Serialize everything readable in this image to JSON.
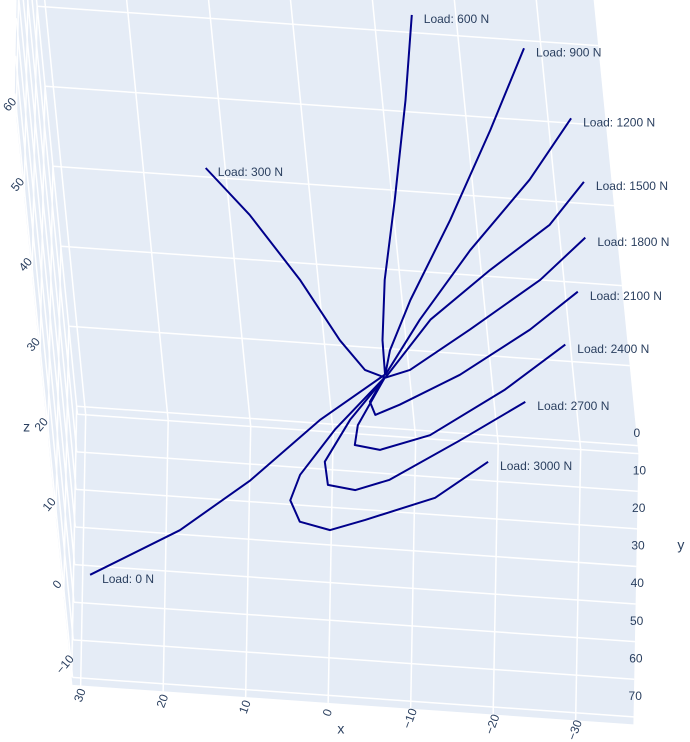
{
  "chart_data": {
    "type": "line3d",
    "x_label": "x",
    "y_label": "y",
    "z_label": "z",
    "xlim": [
      -37,
      31
    ],
    "ylim": [
      0,
      72
    ],
    "zlim": [
      -11,
      62
    ],
    "xticks": [
      30,
      20,
      10,
      0,
      {
        "value": -10,
        "label": "−10"
      },
      {
        "value": -20,
        "label": "−20"
      },
      {
        "value": -30,
        "label": "−30"
      }
    ],
    "yticks": [
      0,
      10,
      20,
      30,
      40,
      50,
      60,
      70
    ],
    "zticks": [
      {
        "value": -10,
        "label": "−10"
      },
      0,
      10,
      20,
      30,
      40,
      50,
      60
    ],
    "grid": true,
    "series": [
      {
        "name": "Load: 0 N",
        "color": "#00008b",
        "x": [
          28.7,
          17.2,
          8.0,
          -1.2,
          -9.7
        ],
        "y": [
          50,
          50,
          50,
          50,
          50
        ],
        "z": [
          -7.4,
          -1.0,
          5.9,
          14.1,
          20.4
        ]
      },
      {
        "name": "Load: 300 N",
        "color": "#00008b",
        "x": [
          11.3,
          6.5,
          1.1,
          -3.0,
          -5.7,
          -8.1
        ],
        "y": [
          20,
          20,
          20,
          20,
          20,
          20
        ],
        "z": [
          30.6,
          25.1,
          17.3,
          10.1,
          6.6,
          5.8
        ]
      },
      {
        "name": "Load: 600 N",
        "color": "#00008b",
        "x": [
          -15.7,
          -13.9,
          -11.4,
          -9.2,
          -8.2,
          -8.1
        ],
        "y": [
          20,
          20,
          20,
          20,
          20,
          20
        ],
        "z": [
          51.7,
          40.9,
          28.3,
          18.1,
          10.5,
          6.1
        ]
      },
      {
        "name": "Load: 900 N",
        "color": "#00008b",
        "x": [
          -29.0,
          -23.9,
          -17.9,
          -12.1,
          -9.0,
          -8.1
        ],
        "y": [
          20,
          20,
          20,
          20,
          20,
          20
        ],
        "z": [
          48.5,
          37.9,
          26.2,
          15.8,
          9.3,
          6.1
        ]
      },
      {
        "name": "Load: 1200 N",
        "color": "#00008b",
        "x": [
          -33.9,
          -28.1,
          -20.0,
          -13.0,
          -8.1
        ],
        "y": [
          20,
          20,
          20,
          20,
          20
        ],
        "z": [
          40.1,
          32.0,
          22.6,
          13.4,
          6.1
        ]
      },
      {
        "name": "Load: 1500 N",
        "color": "#00008b",
        "x": [
          -34.7,
          -30.0,
          -22.2,
          -14.3,
          -8.1
        ],
        "y": [
          20,
          20,
          20,
          20,
          20
        ],
        "z": [
          32.2,
          26.5,
          20.3,
          13.5,
          5.8
        ]
      },
      {
        "name": "Load: 1800 N",
        "color": "#00008b",
        "x": [
          -34.2,
          -28.2,
          -19.0,
          -11.2,
          -8.1
        ],
        "y": [
          20,
          20,
          20,
          20,
          20
        ],
        "z": [
          25.2,
          19.5,
          12.6,
          7.0,
          5.8
        ]
      },
      {
        "name": "Load: 2100 N",
        "color": "#00008b",
        "x": [
          -32.9,
          -26.6,
          -17.5,
          -9.8,
          -6.7,
          -6.2,
          -8.3
        ],
        "y": [
          25,
          25,
          25,
          25,
          25,
          25,
          25
        ],
        "z": [
          20.7,
          15.5,
          9.2,
          4.9,
          3.4,
          5.0,
          8.3
        ]
      },
      {
        "name": "Load: 2400 N",
        "color": "#00008b",
        "x": [
          -31.0,
          -23.1,
          -13.4,
          -7.1,
          -4.1,
          -4.7,
          -8.6
        ],
        "y": [
          30,
          30,
          30,
          30,
          30,
          30,
          30
        ],
        "z": [
          16.3,
          10.1,
          3.7,
          1.4,
          1.8,
          4.3,
          10.6
        ]
      },
      {
        "name": "Load: 2700 N",
        "color": "#00008b",
        "x": [
          -25.7,
          -17.3,
          -8.2,
          -3.9,
          -0.6,
          -0.5,
          -4.1,
          -8.9
        ],
        "y": [
          35,
          35,
          35,
          35,
          35,
          35,
          35,
          35
        ],
        "z": [
          11.1,
          5.7,
          0.1,
          -1.5,
          -1.1,
          1.8,
          7.3,
          13.0
        ]
      },
      {
        "name": "Load: 3000 N",
        "color": "#00008b",
        "x": [
          -20.7,
          -13.8,
          -5.0,
          -0.6,
          3.0,
          3.9,
          2.4,
          -2.4,
          -9.2
        ],
        "y": [
          40,
          40,
          40,
          40,
          40,
          40,
          40,
          40,
          40
        ],
        "z": [
          5.6,
          0.6,
          -2.8,
          -4.4,
          -3.6,
          -1.0,
          2.3,
          8.3,
          15.4
        ]
      }
    ]
  }
}
